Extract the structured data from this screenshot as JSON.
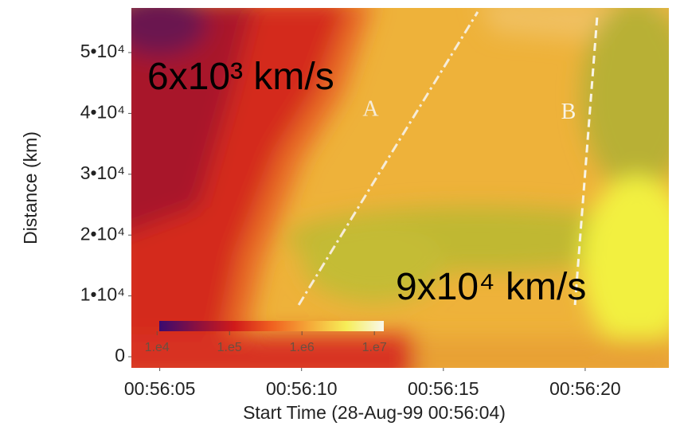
{
  "chart_data": {
    "type": "heatmap",
    "xlabel": "Start Time (28-Aug-99 00:56:04)",
    "ylabel": "Distance (km)",
    "xlim": [
      4.0,
      22.95
    ],
    "ylim": [
      -1830,
      57330
    ],
    "xticks": [
      {
        "value": 5,
        "label": "00:56:05"
      },
      {
        "value": 10,
        "label": "00:56:10"
      },
      {
        "value": 15,
        "label": "00:56:15"
      },
      {
        "value": 20,
        "label": "00:56:20"
      }
    ],
    "yticks": [
      0,
      {
        "value": 10000,
        "label": "1•10⁴"
      },
      {
        "value": 20000,
        "label": "2•10⁴"
      },
      {
        "value": 30000,
        "label": "3•10⁴"
      },
      {
        "value": 40000,
        "label": "4•10⁴"
      },
      {
        "value": 50000,
        "label": "5•10⁴"
      }
    ],
    "lines": [
      {
        "name": "A",
        "x": [
          9.9,
          16.21
        ],
        "y": [
          8510,
          56680
        ],
        "color": "#f6ecd8"
      },
      {
        "name": "B",
        "x": [
          19.64,
          20.42
        ],
        "y": [
          8510,
          55760
        ],
        "color": "#f8f4e6"
      }
    ],
    "annotations": [
      "6x10³ km/s",
      "9x10⁴ km/s"
    ],
    "colorbar": {
      "log": true,
      "lim": [
        10715,
        13490000
      ],
      "ticks": [
        {
          "value": 10000,
          "label": "1.e4"
        },
        {
          "value": 100000,
          "label": "1.e5"
        },
        {
          "value": 1000000,
          "label": "1.e6"
        },
        {
          "value": 10000000,
          "label": "1.e7"
        }
      ],
      "colormap": [
        "#3a0a70",
        "#8a1040",
        "#d01a1a",
        "#f06020",
        "#f5a838",
        "#f6ee58",
        "#f8f8ec"
      ]
    }
  }
}
